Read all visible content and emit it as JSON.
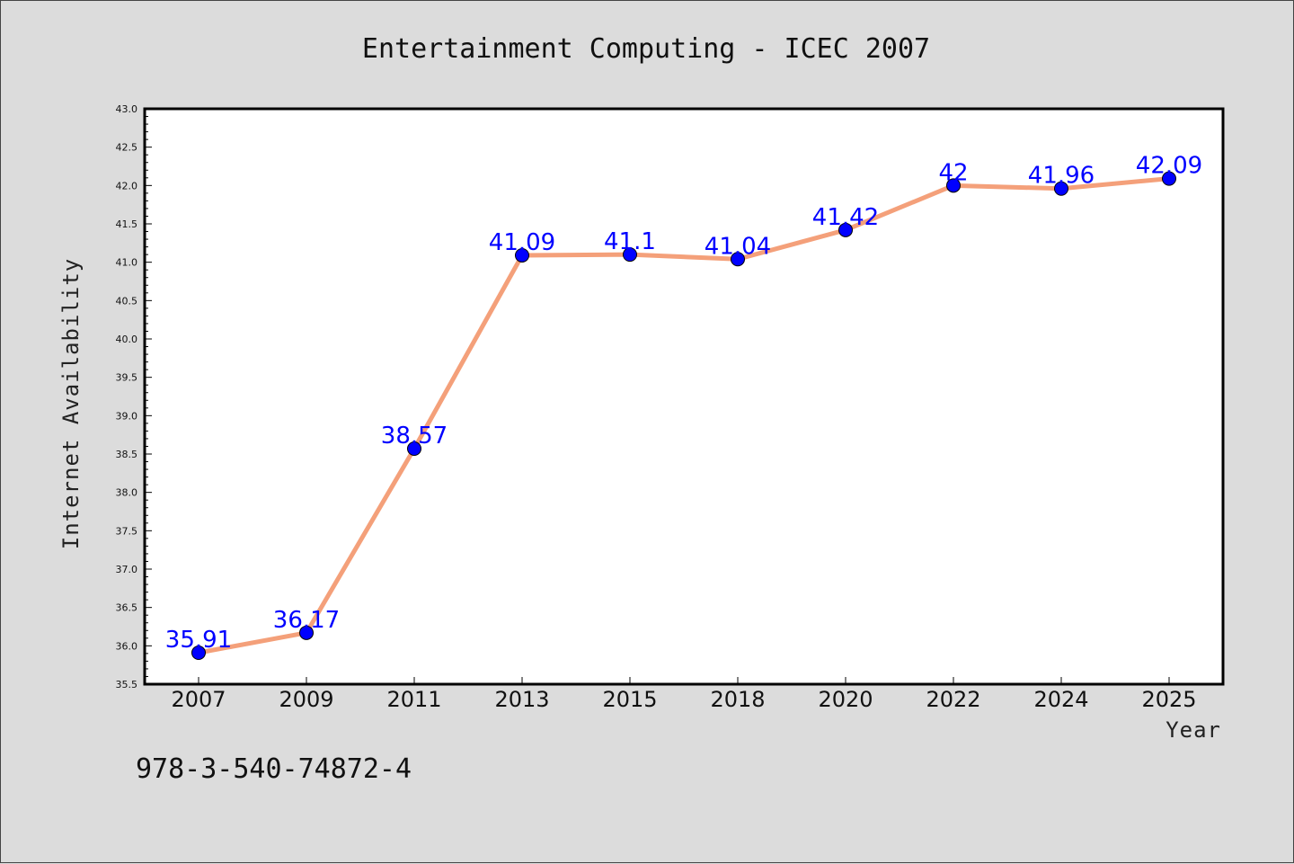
{
  "footer_text": "978-3-540-74872-4",
  "chart_data": {
    "type": "line",
    "title": "Entertainment Computing - ICEC 2007",
    "xlabel": "Year",
    "ylabel": "Internet Availability",
    "categories": [
      "2007",
      "2009",
      "2011",
      "2013",
      "2015",
      "2018",
      "2020",
      "2022",
      "2024",
      "2025"
    ],
    "series": [
      {
        "values": [
          35.91,
          36.17,
          38.57,
          41.09,
          41.1,
          41.04,
          41.42,
          42,
          41.96,
          42.09
        ],
        "line_color": "#f4a07a",
        "marker_color": "#0000ff"
      }
    ],
    "ylim": [
      35.5,
      43.0
    ],
    "yticks": [
      "35.5",
      "36.0",
      "36.5",
      "37.0",
      "37.5",
      "38.0",
      "38.5",
      "39.0",
      "39.5",
      "40.0",
      "40.5",
      "41.0",
      "41.5",
      "42.0",
      "42.5",
      "43.0"
    ],
    "grid": false,
    "legend": "none",
    "data_labels": true
  }
}
